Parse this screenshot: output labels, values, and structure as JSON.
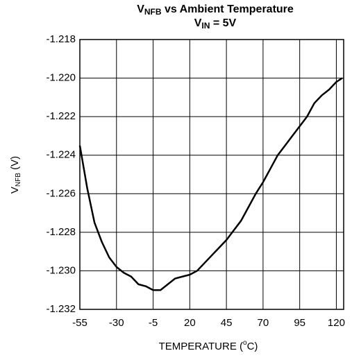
{
  "chart_data": {
    "type": "line",
    "title": {
      "main": "V",
      "sub": "NFB",
      "rest": " vs Ambient Temperature"
    },
    "subtitle": {
      "main": "V",
      "sub": "IN",
      "rest": " = 5V"
    },
    "y_label": {
      "main": "V",
      "sub": "NFB",
      "rest": " (V)"
    },
    "x_label": {
      "main": "TEMPERATURE (",
      "sup": "o",
      "rest": "C)"
    },
    "x": [
      -55,
      -50,
      -45,
      -40,
      -35,
      -30,
      -25,
      -20,
      -15,
      -10,
      -5,
      0,
      5,
      10,
      15,
      20,
      25,
      30,
      35,
      40,
      45,
      50,
      55,
      60,
      65,
      70,
      75,
      80,
      85,
      90,
      95,
      100,
      105,
      110,
      115,
      120,
      124
    ],
    "series": [
      {
        "color": "#000000",
        "values": [
          -1.2235,
          -1.2257,
          -1.2275,
          -1.2285,
          -1.2293,
          -1.2298,
          -1.2301,
          -1.2303,
          -1.2307,
          -1.2308,
          -1.231,
          -1.231,
          -1.2307,
          -1.2304,
          -1.2303,
          -1.2302,
          -1.23,
          -1.2296,
          -1.2292,
          -1.2288,
          -1.2284,
          -1.2279,
          -1.2274,
          -1.2267,
          -1.226,
          -1.2254,
          -1.2247,
          -1.224,
          -1.2235,
          -1.223,
          -1.2225,
          -1.222,
          -1.2213,
          -1.2209,
          -1.2206,
          -1.2202,
          -1.22
        ]
      }
    ],
    "xlim": [
      -55,
      125
    ],
    "xticks": [
      -55,
      -30,
      -5,
      20,
      45,
      70,
      95,
      120
    ],
    "ylim": [
      -1.232,
      -1.218
    ],
    "yticks": [
      -1.218,
      {
        "value": -1.22,
        "label": "-1.220"
      },
      -1.222,
      -1.224,
      -1.226,
      -1.228,
      {
        "value": -1.23,
        "label": "-1.230"
      },
      -1.232
    ],
    "grid": true
  }
}
